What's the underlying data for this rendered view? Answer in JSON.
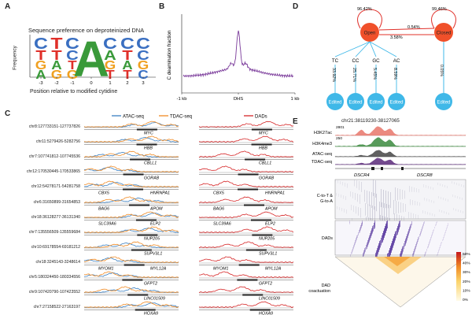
{
  "panels": {
    "a": {
      "letter": "A",
      "title": "Sequence preference on deproteinized DNA",
      "ylabel": "Frequency",
      "xlabel": "Position relative to modified cytidine",
      "ticks": [
        "-3",
        "-2",
        "-1",
        "0",
        "1",
        "2",
        "3"
      ],
      "logo_letters": [
        "C",
        "T",
        "G",
        "A",
        "T",
        "T",
        "A",
        "G",
        "C",
        "C",
        "T",
        "G",
        "A",
        "C",
        "A",
        "G",
        "T",
        "C",
        "T",
        "A",
        "T",
        "C",
        "C",
        "G",
        "C",
        "A",
        "T",
        "C",
        "C",
        "C",
        "G"
      ]
    },
    "b": {
      "letter": "B",
      "ylabel": "C deamination fraction",
      "xticks": [
        "-1 kb",
        "DHS",
        "1 kb"
      ]
    },
    "c": {
      "letter": "C",
      "legend_left": [
        "ATAC-seq",
        "TDAC-seq"
      ],
      "legend_right": "DADs",
      "rows": [
        {
          "coord": "chr8:127733151-127737826",
          "genes": [
            "MYC"
          ]
        },
        {
          "coord": "chr11:5279426-5282756",
          "genes": [
            "HBB"
          ]
        },
        {
          "coord": "chr7:107741812-107745536",
          "genes": [
            "CBLL1"
          ]
        },
        {
          "coord": "chr12:170530445-170533865",
          "genes": [
            "GORAB"
          ]
        },
        {
          "coord": "chr12:54278171-54281758",
          "genes": [
            "CBX5",
            "HNRNPA1"
          ]
        },
        {
          "coord": "chr6:31650899-31654853",
          "genes": [
            "BAG6",
            "APOM"
          ]
        },
        {
          "coord": "chr18:36128277-36131340",
          "genes": [
            "SLC39A6",
            "ELP2"
          ]
        },
        {
          "coord": "chr7:135556509-135559684",
          "genes": [
            "NUP205"
          ]
        },
        {
          "coord": "chr10:69178554-69181212",
          "genes": [
            "SUPV3L1"
          ]
        },
        {
          "coord": "chr18:3245143-3248614",
          "genes": [
            "MYOM1",
            "MYL12A"
          ]
        },
        {
          "coord": "chr5:180324450-180334556",
          "genes": [
            "GFPT2"
          ]
        },
        {
          "coord": "chr9:107420790-107423552",
          "genes": [
            "LINC01509"
          ]
        },
        {
          "coord": "chr7:27158522-27163197",
          "genes": [
            "HOXA9"
          ]
        }
      ]
    },
    "d": {
      "letter": "D",
      "open_label": "Open",
      "closed_label": "Closed",
      "self_open": "96.42%",
      "self_closed": "99.46%",
      "open_to_closed": "3.58%",
      "closed_to_open": "0.54%",
      "contexts": [
        {
          "label": "TC",
          "pct": "33.92%",
          "node": "Edited"
        },
        {
          "label": "CC",
          "pct": "25.71%",
          "node": "Edited"
        },
        {
          "label": "GC",
          "pct": "5.45%",
          "node": "Edited"
        },
        {
          "label": "AC",
          "pct": "8.59%",
          "node": "Edited"
        }
      ],
      "closed_pct": "0.05%",
      "closed_node": "Edited"
    },
    "e": {
      "letter": "E",
      "region": "chr21:38119230-38127065",
      "tracks": [
        {
          "name": "H3K27ac",
          "max": "2801",
          "color": "#e8756a"
        },
        {
          "name": "H3K4me3",
          "max": "250",
          "color": "#3b8a3e"
        },
        {
          "name": "ATAC-seq",
          "max": "",
          "color": "#444444"
        },
        {
          "name": "TDAC-seq",
          "max": "",
          "color": "#5a2a7a"
        }
      ],
      "genes": [
        "DSCR4",
        "DSCR8"
      ],
      "heat_labels": [
        "C-to-T &\nG-to-A",
        "DADs"
      ],
      "triangle_label": "DAD\ncoactuation",
      "colorbar_ticks": [
        "50%",
        "40%",
        "30%",
        "20%",
        "10%",
        "0%"
      ]
    }
  },
  "colors": {
    "atac": "#3a7fc1",
    "tdac": "#f08a24",
    "dads": "#d62728",
    "node": "#f0502a",
    "edited": "#3fb8e8"
  }
}
